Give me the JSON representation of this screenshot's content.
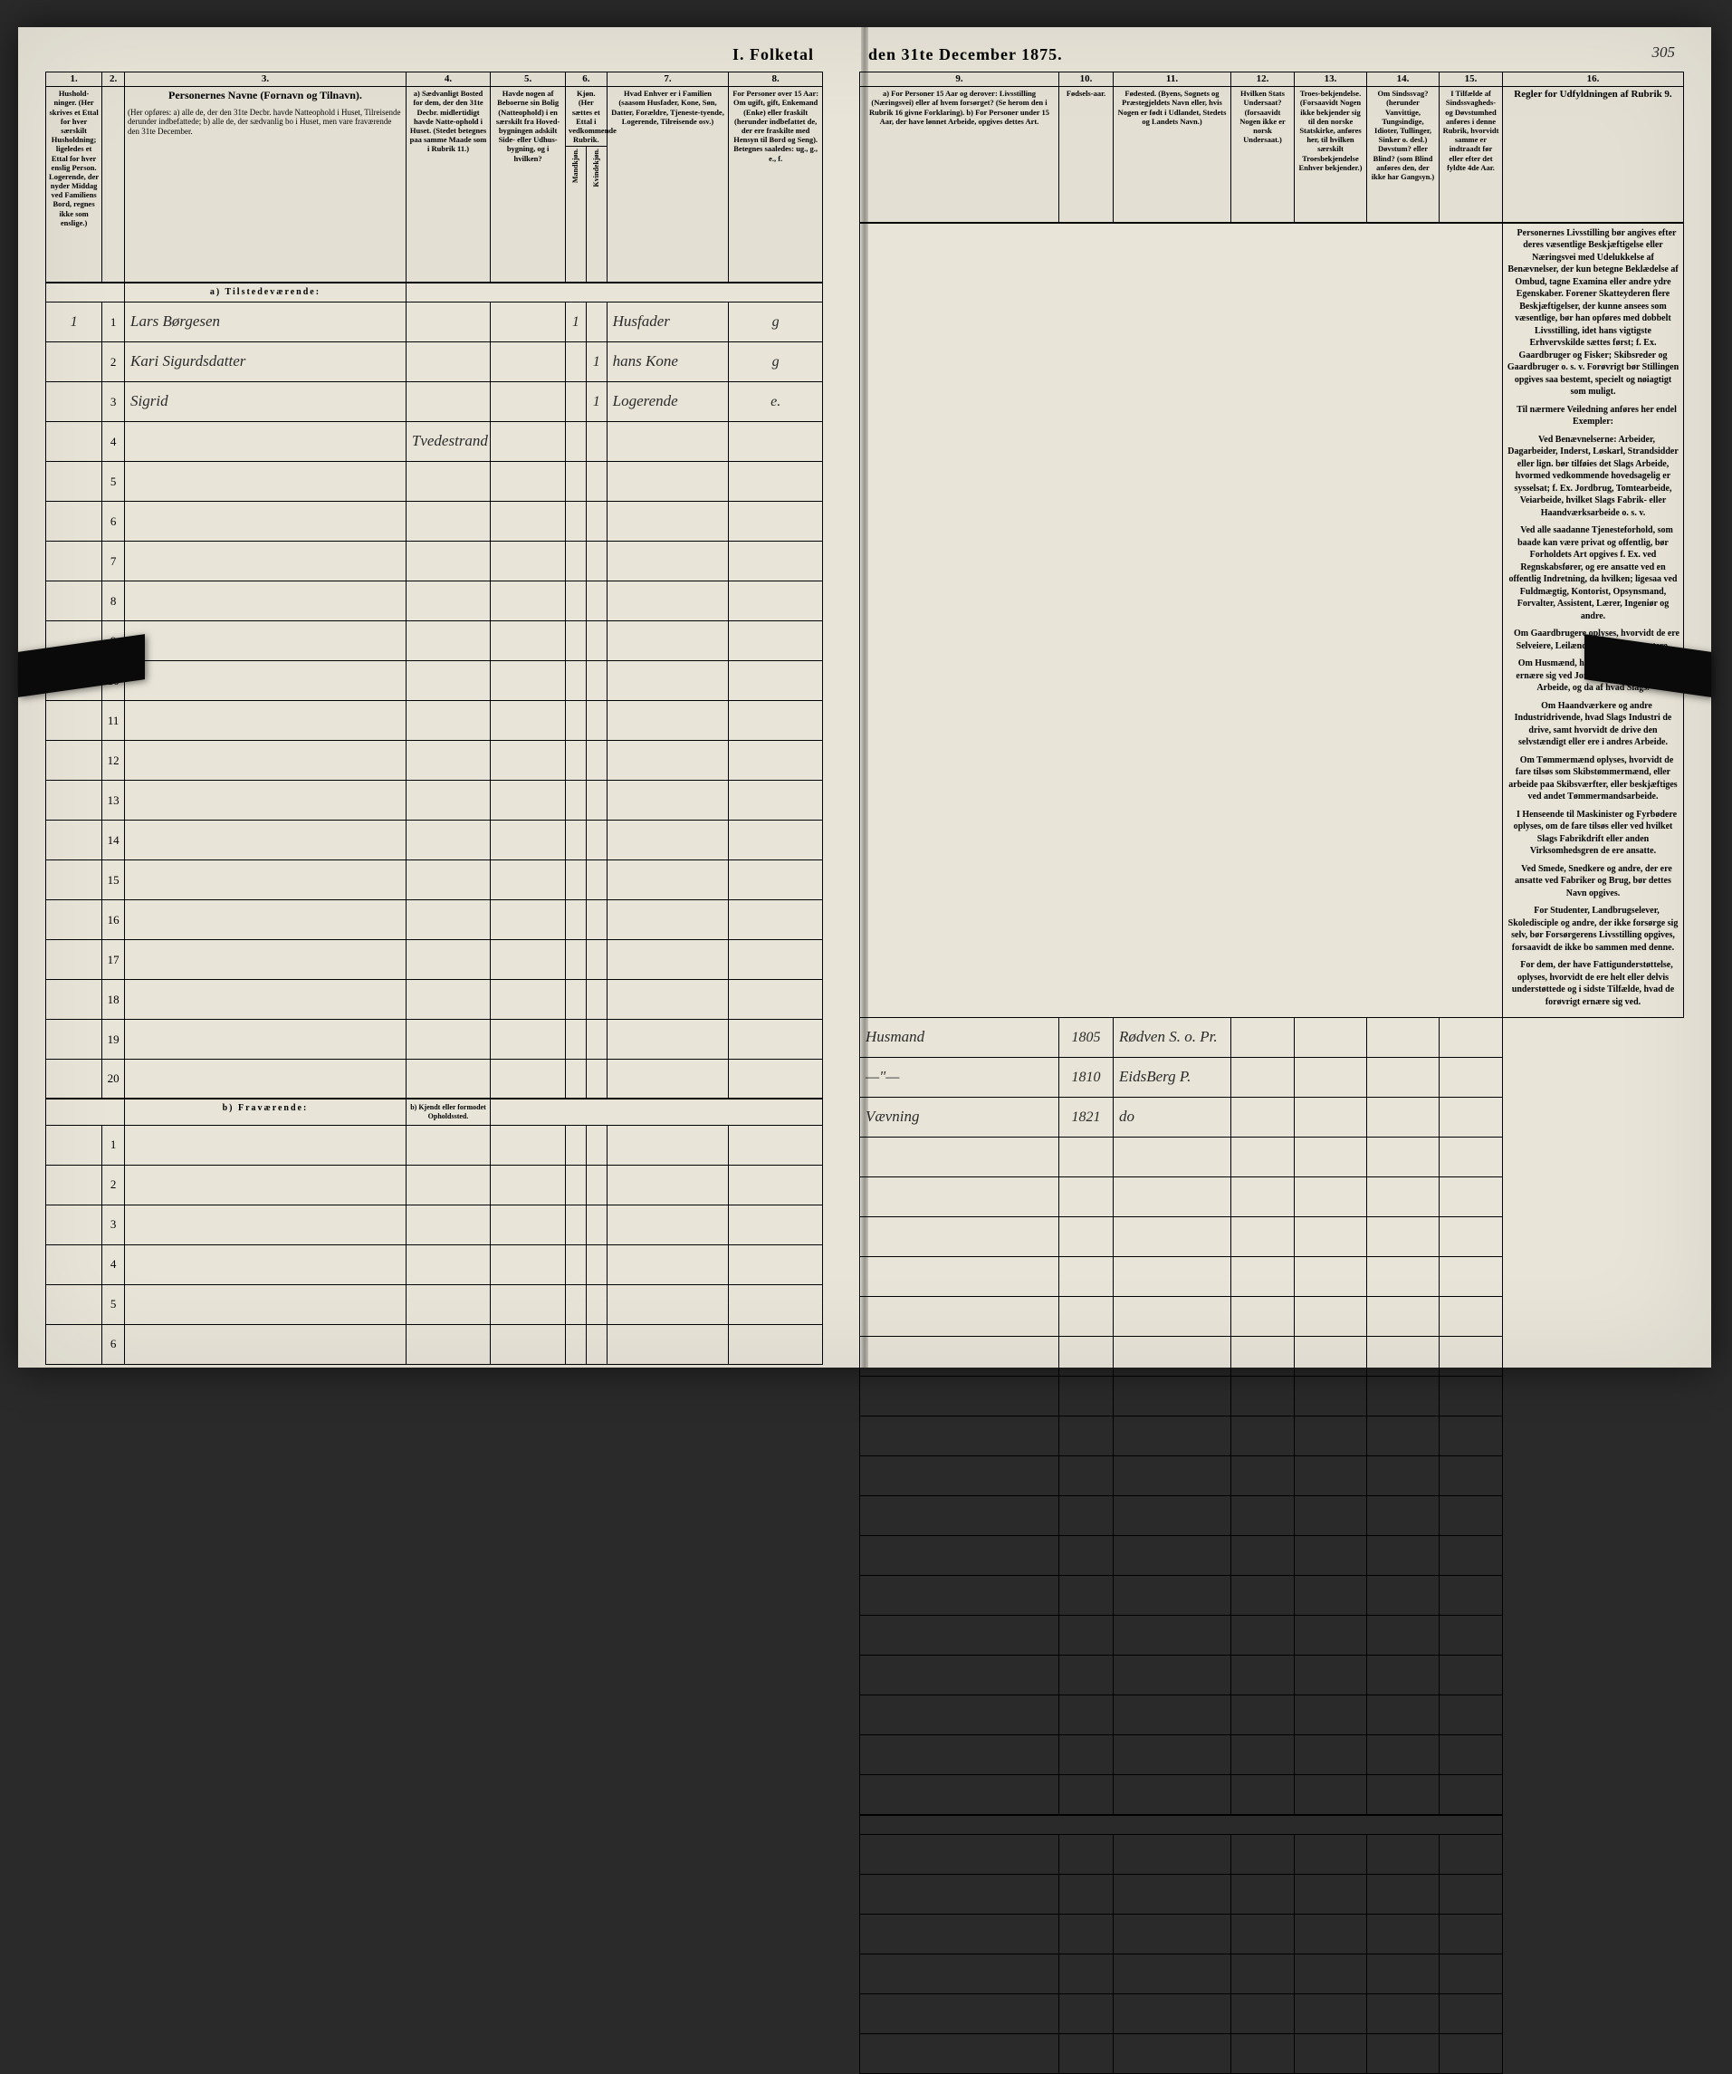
{
  "title_left": "I. Folketal",
  "title_right": "den 31te December 1875.",
  "page_number": "305",
  "col_numbers_left": [
    "1.",
    "2.",
    "3.",
    "4.",
    "5.",
    "6.",
    "7.",
    "8."
  ],
  "col_numbers_right": [
    "9.",
    "10.",
    "11.",
    "12.",
    "13.",
    "14.",
    "15.",
    "16."
  ],
  "headers_left": {
    "c1": "Hushold-ninger.\n(Her skrives et Ettal for hver særskilt Husholdning; ligeledes et Ettal for hver enslig Person. Logerende, der nyder Middag ved Familiens Bord, regnes ikke som enslige.)",
    "c2": "",
    "c3_title": "Personernes Navne (Fornavn og Tilnavn).",
    "c3_sub": "(Her opføres:\na) alle de, der den 31te Decbr. havde Natteophold i Huset, Tilreisende derunder indbefattede;\nb) alle de, der sædvanlig bo i Huset, men vare fraværende den 31te December.",
    "c4": "a) Sædvanligt Bosted for dem, der den 31te Decbr. midlertidigt havde Natte-ophold i Huset.\n(Stedet betegnes paa samme Maade som i Rubrik 11.)",
    "c5": "Havde nogen af Beboerne sin Bolig (Natteophold) i en særskilt fra Hoved-bygningen adskilt Side- eller Udhus-bygning, og i hvilken?",
    "c6": "Kjøn.\n(Her sættes et Ettal i vedkommende Rubrik.",
    "c6a": "Mandkjøn.",
    "c6b": "Kvindekjøn.",
    "c7": "Hvad Enhver er i Familien\n(saasom Husfader, Kone, Søn, Datter, Forældre, Tjeneste-tyende, Logerende, Tilreisende osv.)",
    "c8": "For Personer over 15 Aar: Om ugift, gift, Enkemand (Enke) eller fraskilt (herunder indbefattet de, der ere fraskilte med Hensyn til Bord og Seng). Betegnes saaledes: ug., g., e., f."
  },
  "headers_right": {
    "c9": "a) For Personer 15 Aar og derover: Livsstilling (Næringsvei) eller af hvem forsørget? (Se herom den i Rubrik 16 givne Forklaring).\nb) For Personer under 15 Aar, der have lønnet Arbeide, opgives dettes Art.",
    "c10": "Fødsels-aar.",
    "c11": "Fødested.\n(Byens, Sognets og Præstegjeldets Navn eller, hvis Nogen er født i Udlandet, Stedets og Landets Navn.)",
    "c12": "Hvilken Stats Undersaat?\n(forsaavidt Nogen ikke er norsk Undersaat.)",
    "c13": "Troes-bekjendelse.\n(Forsaavidt Nogen ikke bekjender sig til den norske Statskirke, anføres her, til hvilken særskilt Troesbekjendelse Enhver bekjender.)",
    "c14": "Om Sindssvag? (herunder Vanvittige, Tungsindige, Idioter, Tullinger, Sinker o. desl.) Døvstum? eller Blind? (som Blind anføres den, der ikke har Gangsyn.)",
    "c15": "I Tilfælde af Sindssvagheds- og Døvstumhed anføres i denne Rubrik, hvorvidt samme er indtraadt før eller efter det fyldte 4de Aar.",
    "c16": "Regler for Udfyldningen af Rubrik 9."
  },
  "section_a": "a) Tilstedeværende:",
  "section_b": "b) Fraværende:",
  "section_b_col4": "b) Kjendt eller formodet Opholdssted.",
  "rows": [
    {
      "n": "1",
      "hh": "1",
      "name": "Lars Børgesen",
      "c4": "",
      "c5": "",
      "mk": "1",
      "kv": "",
      "fam": "Husfader",
      "civ": "g",
      "occ": "Husmand",
      "year": "1805",
      "birthplace": "Rødven S. o. Pr."
    },
    {
      "n": "2",
      "hh": "",
      "name": "Kari Sigurdsdatter",
      "c4": "",
      "c5": "",
      "mk": "",
      "kv": "1",
      "fam": "hans Kone",
      "civ": "g",
      "occ": "—\"—",
      "year": "1810",
      "birthplace": "EidsBerg P."
    },
    {
      "n": "3",
      "hh": "",
      "name": "Sigrid",
      "c4": "",
      "c5": "",
      "mk": "",
      "kv": "1",
      "fam": "Logerende",
      "civ": "e.",
      "occ": "Vævning",
      "year": "1821",
      "birthplace": "do"
    },
    {
      "n": "4",
      "hh": "",
      "name": "",
      "c4": "Tvedestrand",
      "c5": "",
      "mk": "",
      "kv": "",
      "fam": "",
      "civ": "",
      "occ": "",
      "year": "",
      "birthplace": ""
    }
  ],
  "empty_rows_a": [
    "5",
    "6",
    "7",
    "8",
    "9",
    "10",
    "11",
    "12",
    "13",
    "14",
    "15",
    "16",
    "17",
    "18",
    "19",
    "20"
  ],
  "empty_rows_b": [
    "1",
    "2",
    "3",
    "4",
    "5",
    "6"
  ],
  "instructions": [
    "Personernes Livsstilling bør angives efter deres væsentlige Beskjæftigelse eller Næringsvei med Udelukkelse af Benævnelser, der kun betegne Beklædelse af Ombud, tagne Examina eller andre ydre Egenskaber. Forener Skatteyderen flere Beskjæftigelser, der kunne ansees som væsentlige, bør han opføres med dobbelt Livsstilling, idet hans vigtigste Erhvervskilde sættes først; f. Ex. Gaardbruger og Fisker; Skibsreder og Gaardbruger o. s. v. Forøvrigt bør Stillingen opgives saa bestemt, specielt og nøiagtigt som muligt.",
    "Til nærmere Veiledning anføres her endel Exempler:",
    "Ved Benævnelserne: Arbeider, Dagarbeider, Inderst, Løskarl, Strandsidder eller lign. bør tilføies det Slags Arbeide, hvormed vedkommende hovedsagelig er sysselsat; f. Ex. Jordbrug, Tomtearbeide, Veiarbeide, hvilket Slags Fabrik- eller Haandværksarbeide o. s. v.",
    "Ved alle saadanne Tjenesteforhold, som baade kan være privat og offentlig, bør Forholdets Art opgives f. Ex. ved Regnskabsfører, og ere ansatte ved en offentlig Indretning, da hvilken; ligesaa ved Fuldmægtig, Kontorist, Opsynsmand, Forvalter, Assistent, Lærer, Ingeniør og andre.",
    "Om Gaardbrugere oplyses, hvorvidt de ere Selveiere, Leilændinge eller Forpagtere.",
    "Om Husmænd, hvorvidt de fornemmelig ernære sig ved Jordbrug eller ved andet Arbeide, og da af hvad Slags.",
    "Om Haandværkere og andre Industridrivende, hvad Slags Industri de drive, samt hvorvidt de drive den selvstændigt eller ere i andres Arbeide.",
    "Om Tømmermænd oplyses, hvorvidt de fare tilsøs som Skibstømmermænd, eller arbeide paa Skibsværfter, eller beskjæftiges ved andet Tømmermandsarbeide.",
    "I Henseende til Maskinister og Fyrbødere oplyses, om de fare tilsøs eller ved hvilket Slags Fabrikdrift eller anden Virksomhedsgren de ere ansatte.",
    "Ved Smede, Snedkere og andre, der ere ansatte ved Fabriker og Brug, bør dettes Navn opgives.",
    "For Studenter, Landbrugselever, Skoledisciple og andre, der ikke forsørge sig selv, bør Forsørgerens Livsstilling opgives, forsaavidt de ikke bo sammen med denne.",
    "For dem, der have Fattigunderstøttelse, oplyses, hvorvidt de ere helt eller delvis understøttede og i sidste Tilfælde, hvad de forøvrigt ernære sig ved."
  ],
  "colors": {
    "paper": "#e8e4d8",
    "ink": "#000000",
    "handwriting": "#2a2a2a",
    "background": "#2a2a2a"
  },
  "layout": {
    "left_cols": {
      "c1": 60,
      "c2": 24,
      "c3": 300,
      "c4": 90,
      "c5": 80,
      "c6a": 22,
      "c6b": 22,
      "c7": 130,
      "c8": 100
    },
    "right_cols": {
      "c9": 220,
      "c10": 60,
      "c11": 130,
      "c12": 70,
      "c13": 80,
      "c14": 80,
      "c15": 70,
      "c16": 200
    }
  }
}
